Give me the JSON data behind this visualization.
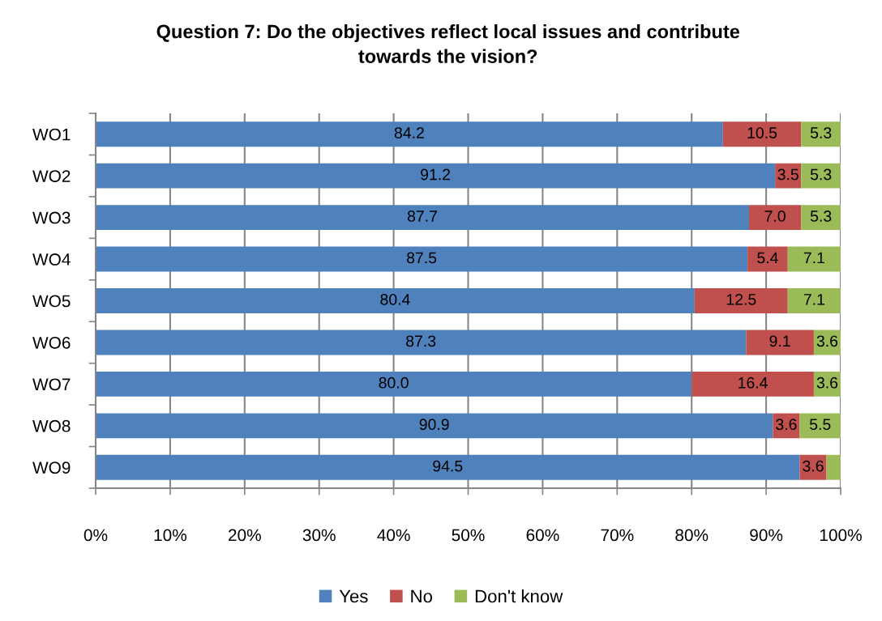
{
  "chart_data": {
    "type": "bar",
    "orientation": "horizontal",
    "stacked": true,
    "title": "Question 7: Do the objectives reflect local issues and contribute towards the vision?",
    "categories": [
      "WO1",
      "WO2",
      "WO3",
      "WO4",
      "WO5",
      "WO6",
      "WO7",
      "WO8",
      "WO9"
    ],
    "series": [
      {
        "name": "Yes",
        "color": "#4f81bd",
        "values": [
          84.2,
          91.2,
          87.7,
          87.5,
          80.4,
          87.3,
          80.0,
          90.9,
          94.5
        ],
        "value_labels": [
          "84.2",
          "91.2",
          "87.7",
          "87.5",
          "80.4",
          "87.3",
          "80.0",
          "90.9",
          "94.5"
        ]
      },
      {
        "name": "No",
        "color": "#c0504d",
        "values": [
          10.5,
          3.5,
          7.0,
          5.4,
          12.5,
          9.1,
          16.4,
          3.6,
          3.6
        ],
        "value_labels": [
          "10.5",
          "3.5",
          "7.0",
          "5.4",
          "12.5",
          "9.1",
          "16.4",
          "3.6",
          "3.6"
        ]
      },
      {
        "name": "Don't know",
        "color": "#9bbb59",
        "values": [
          5.3,
          5.3,
          5.3,
          7.1,
          7.1,
          3.6,
          3.6,
          5.5,
          1.9
        ],
        "value_labels": [
          "5.3",
          "5.3",
          "5.3",
          "7.1",
          "7.1",
          "3.6",
          "3.6",
          "5.5",
          null
        ]
      }
    ],
    "xlim": [
      0,
      100
    ],
    "xticks": [
      {
        "value": 0,
        "label": "0%"
      },
      {
        "value": 10,
        "label": "10%"
      },
      {
        "value": 20,
        "label": "20%"
      },
      {
        "value": 30,
        "label": "30%"
      },
      {
        "value": 40,
        "label": "40%"
      },
      {
        "value": 50,
        "label": "50%"
      },
      {
        "value": 60,
        "label": "60%"
      },
      {
        "value": 70,
        "label": "70%"
      },
      {
        "value": 80,
        "label": "80%"
      },
      {
        "value": 90,
        "label": "90%"
      },
      {
        "value": 100,
        "label": "100%"
      }
    ],
    "grid": "x",
    "legend": "bottom"
  }
}
